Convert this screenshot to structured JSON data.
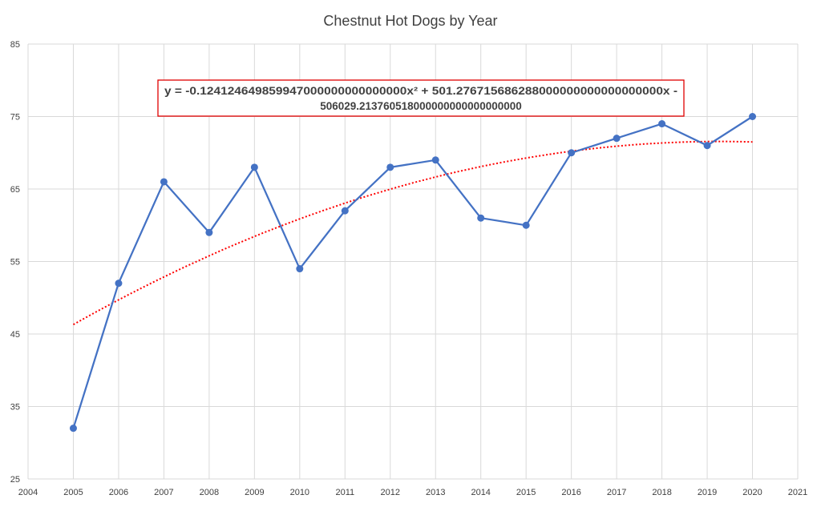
{
  "chart_data": {
    "type": "scatter",
    "title": "Chestnut Hot Dogs by Year",
    "xlabel": "",
    "ylabel": "",
    "xlim": [
      2004,
      2021
    ],
    "ylim": [
      25,
      85
    ],
    "x_ticks": [
      2004,
      2005,
      2006,
      2007,
      2008,
      2009,
      2010,
      2011,
      2012,
      2013,
      2014,
      2015,
      2016,
      2017,
      2018,
      2019,
      2020,
      2021
    ],
    "y_ticks": [
      25,
      35,
      45,
      55,
      65,
      75,
      85
    ],
    "grid": true,
    "legend": "none",
    "series": [
      {
        "x": [
          2005,
          2006,
          2007,
          2008,
          2009,
          2010,
          2011,
          2012,
          2013,
          2014,
          2015,
          2016,
          2017,
          2018,
          2019,
          2020
        ],
        "y": [
          32,
          52,
          66,
          59,
          68,
          54,
          62,
          68,
          69,
          61,
          60,
          70,
          72,
          74,
          71,
          75
        ],
        "color": "#4472c4",
        "markers": true,
        "line": true
      }
    ],
    "trendline": {
      "type": "polynomial",
      "order": 2,
      "color": "#ff0000",
      "style": "dotted",
      "x_range": [
        2005,
        2020
      ],
      "y_start": 46.3,
      "y_end": 71.5
    },
    "annotation": {
      "line1": "y = -0.124124649859947000000000000000x² + 501.276715686288000000000000000000x -",
      "line2": "506029.213760518000000000000000000",
      "border_color": "#e00000"
    }
  }
}
